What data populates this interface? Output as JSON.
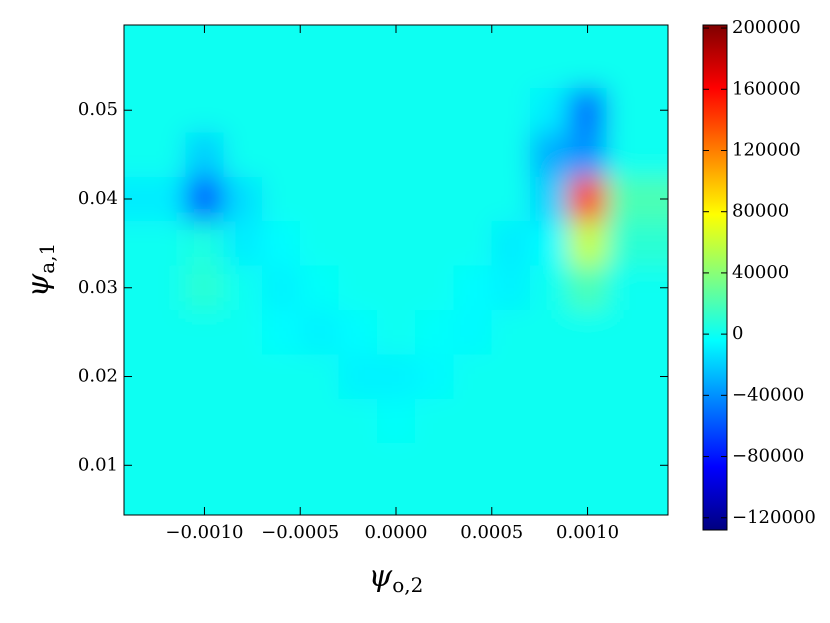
{
  "chart_data": {
    "type": "heatmap",
    "x_label": "ψ",
    "x_label_sub": "o,2",
    "y_label": "ψ",
    "y_label_sub": "a,1",
    "x": [
      -0.0012,
      -0.001,
      -0.0008,
      -0.0006,
      -0.0004,
      -0.0002,
      0,
      0.0002,
      0.0004,
      0.0006,
      0.0008,
      0.001,
      0.0012
    ],
    "y": [
      0.005,
      0.01,
      0.015,
      0.02,
      0.025,
      0.03,
      0.035,
      0.04,
      0.045,
      0.05,
      0.055
    ],
    "z": [
      [
        0,
        0,
        0,
        0,
        0,
        0,
        0,
        0,
        0,
        0,
        0,
        0,
        0
      ],
      [
        0,
        0,
        0,
        0,
        0,
        0,
        0,
        0,
        0,
        0,
        0,
        0,
        0
      ],
      [
        0,
        0,
        0,
        0,
        0,
        0,
        -3000,
        0,
        0,
        0,
        0,
        0,
        0
      ],
      [
        0,
        0,
        0,
        0,
        0,
        -8000,
        -8000,
        -6000,
        0,
        0,
        0,
        0,
        0
      ],
      [
        0,
        0,
        0,
        -5000,
        -8000,
        -5000,
        0,
        -3000,
        -6000,
        0,
        0,
        0,
        0
      ],
      [
        0,
        10000,
        0,
        -8000,
        -3000,
        0,
        0,
        0,
        -5000,
        -8000,
        0,
        20000,
        0
      ],
      [
        0,
        5000,
        -10000,
        -5000,
        0,
        0,
        0,
        0,
        0,
        -10000,
        -5000,
        60000,
        10000
      ],
      [
        -10000,
        -55000,
        -15000,
        0,
        0,
        0,
        0,
        0,
        0,
        0,
        -20000,
        140000,
        20000
      ],
      [
        0,
        -20000,
        0,
        0,
        0,
        0,
        0,
        0,
        0,
        0,
        -30000,
        -40000,
        0
      ],
      [
        0,
        0,
        0,
        0,
        0,
        0,
        0,
        0,
        0,
        0,
        -10000,
        -50000,
        0
      ],
      [
        0,
        0,
        0,
        0,
        0,
        0,
        0,
        0,
        0,
        0,
        0,
        0,
        0
      ]
    ],
    "xlim": [
      -0.00142,
      0.00142
    ],
    "ylim": [
      0.0044,
      0.0596
    ],
    "xticks": [
      {
        "value": -0.001,
        "label": "−0.0010"
      },
      {
        "value": -0.0005,
        "label": "−0.0005"
      },
      {
        "value": 0,
        "label": "0.0000"
      },
      0.0005,
      {
        "value": 0.001,
        "label": "0.0010"
      }
    ],
    "yticks": [
      0.01,
      0.02,
      0.03,
      0.04,
      0.05
    ],
    "zlim": [
      -128000,
      202000
    ],
    "zticks": [
      {
        "value": -120000,
        "label": "−120000"
      },
      {
        "value": -80000,
        "label": "−80000"
      },
      {
        "value": -40000,
        "label": "−40000"
      },
      0,
      40000,
      80000,
      120000,
      160000,
      200000
    ],
    "colormap": "jet"
  }
}
